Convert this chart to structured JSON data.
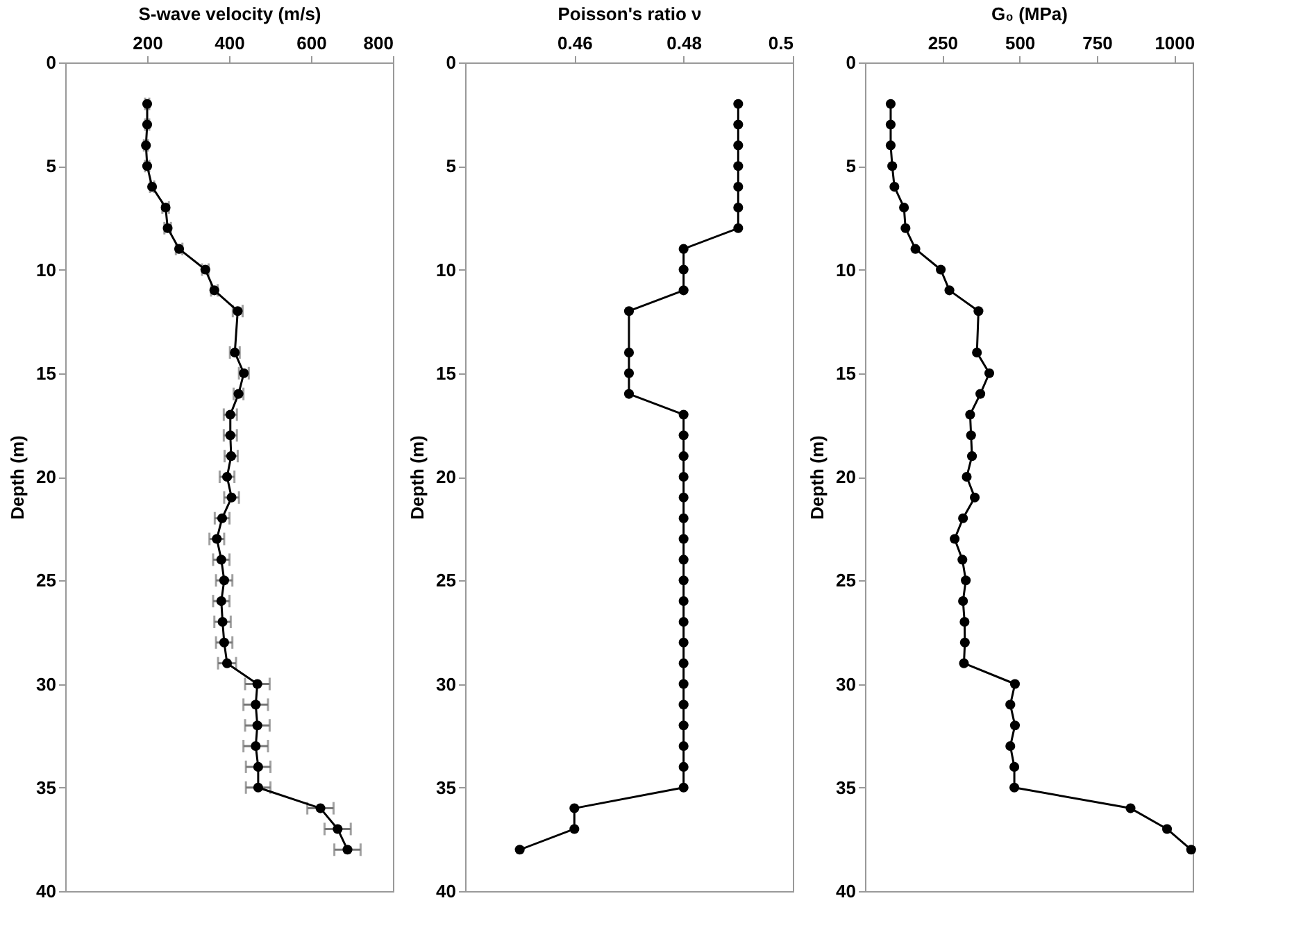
{
  "chart_data": [
    {
      "type": "line",
      "xlabel": "S-wave velocity (m/s)",
      "ylabel": "Depth (m)",
      "xlim": [
        0,
        800
      ],
      "xticks": [
        200,
        400,
        600,
        800
      ],
      "ylim": [
        40,
        0
      ],
      "yticks": [
        0,
        5,
        10,
        15,
        20,
        25,
        30,
        35,
        40
      ],
      "marker": "circle",
      "grid": false,
      "series": [
        {
          "color": "#000000",
          "x": [
            200,
            200,
            197,
            200,
            212,
            245,
            250,
            278,
            342,
            364,
            421,
            414,
            436,
            423,
            403,
            403,
            405,
            395,
            406,
            383,
            370,
            381,
            388,
            381,
            384,
            388,
            395,
            469,
            465,
            469,
            465,
            471,
            471,
            623,
            665,
            689
          ],
          "values": [
            2,
            3,
            4,
            5,
            6,
            7,
            8,
            9,
            10,
            11,
            12,
            14,
            15,
            16,
            17,
            18,
            19,
            20,
            21,
            22,
            23,
            24,
            25,
            26,
            27,
            28,
            29,
            30,
            31,
            32,
            33,
            34,
            35,
            36,
            37,
            38
          ],
          "xerrors": [
            5,
            5,
            5,
            5,
            5,
            8,
            8,
            8,
            8,
            8,
            12,
            12,
            12,
            12,
            16,
            16,
            16,
            18,
            18,
            18,
            18,
            20,
            20,
            20,
            20,
            20,
            22,
            30,
            30,
            30,
            30,
            30,
            30,
            32,
            32,
            32
          ]
        }
      ]
    },
    {
      "type": "line",
      "xlabel": "Poisson's ratio ν",
      "ylabel": "Depth (m)",
      "xlim": [
        0.44,
        0.5
      ],
      "xticks": [
        0.46,
        0.48,
        0.5
      ],
      "ylim": [
        40,
        0
      ],
      "yticks": [
        0,
        5,
        10,
        15,
        20,
        25,
        30,
        35,
        40
      ],
      "marker": "circle",
      "grid": false,
      "series": [
        {
          "color": "#000000",
          "x": [
            0.49,
            0.49,
            0.49,
            0.49,
            0.49,
            0.49,
            0.49,
            0.48,
            0.48,
            0.48,
            0.47,
            0.47,
            0.47,
            0.47,
            0.48,
            0.48,
            0.48,
            0.48,
            0.48,
            0.48,
            0.48,
            0.48,
            0.48,
            0.48,
            0.48,
            0.48,
            0.48,
            0.48,
            0.48,
            0.48,
            0.48,
            0.48,
            0.48,
            0.46,
            0.46,
            0.45
          ],
          "values": [
            2,
            3,
            4,
            5,
            6,
            7,
            8,
            9,
            10,
            11,
            12,
            14,
            15,
            16,
            17,
            18,
            19,
            20,
            21,
            22,
            23,
            24,
            25,
            26,
            27,
            28,
            29,
            30,
            31,
            32,
            33,
            34,
            35,
            36,
            37,
            38
          ]
        }
      ]
    },
    {
      "type": "line",
      "xlabel": "G₀ (MPa)",
      "ylabel": "Depth (m)",
      "xlim": [
        0,
        1060
      ],
      "xticks": [
        250,
        500,
        750,
        1000
      ],
      "ylim": [
        40,
        0
      ],
      "yticks": [
        0,
        5,
        10,
        15,
        20,
        25,
        30,
        35,
        40
      ],
      "marker": "circle",
      "grid": false,
      "series": [
        {
          "color": "#000000",
          "x": [
            83,
            83,
            83,
            88,
            95,
            126,
            131,
            163,
            245,
            273,
            367,
            362,
            402,
            373,
            340,
            343,
            346,
            329,
            355,
            317,
            290,
            315,
            326,
            317,
            322,
            323,
            320,
            485,
            470,
            485,
            470,
            483,
            483,
            859,
            977,
            1055
          ],
          "values": [
            2,
            3,
            4,
            5,
            6,
            7,
            8,
            9,
            10,
            11,
            12,
            14,
            15,
            16,
            17,
            18,
            19,
            20,
            21,
            22,
            23,
            24,
            25,
            26,
            27,
            28,
            29,
            30,
            31,
            32,
            33,
            34,
            35,
            36,
            37,
            38
          ]
        }
      ]
    }
  ]
}
